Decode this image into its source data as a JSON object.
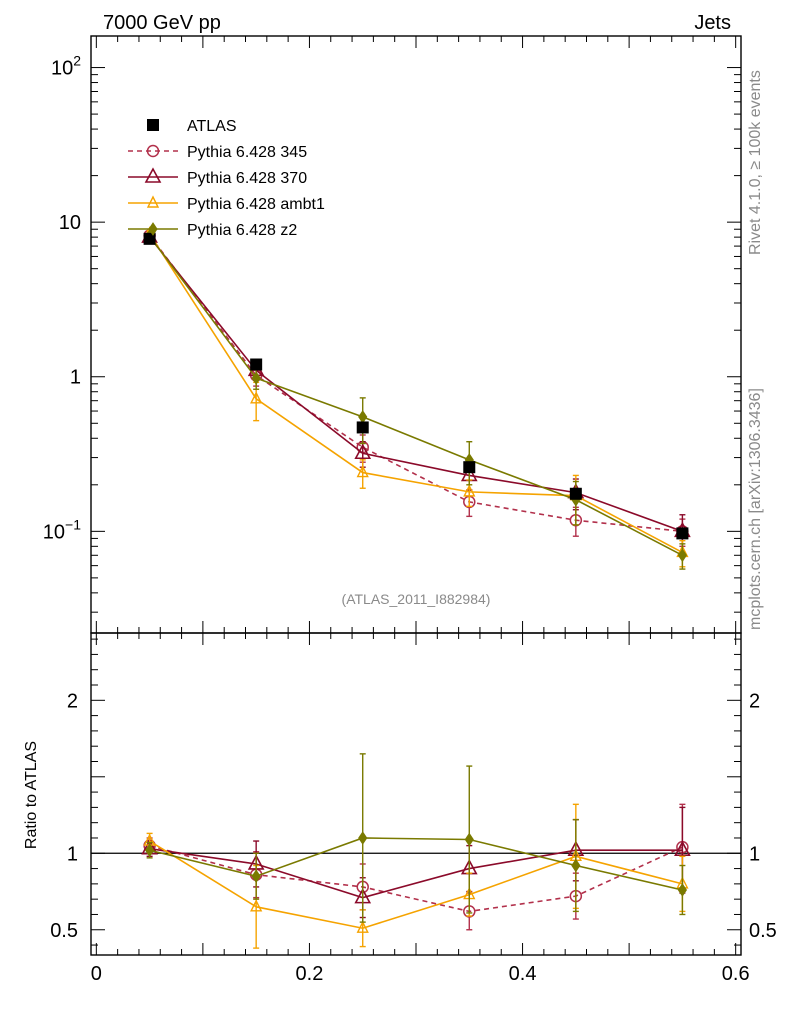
{
  "header": {
    "left": "7000 GeV pp",
    "right": "Jets"
  },
  "side_labels": {
    "top": "Rivet 4.1.0, ≥ 100k events",
    "bottom": "mcplots.cern.ch [arXiv:1306.3436]"
  },
  "analysis_id": "(ATLAS_2011_I882984)",
  "chart_data": [
    {
      "type": "line",
      "panel": "main",
      "yscale": "log",
      "ylim": [
        0.022,
        160
      ],
      "xlim": [
        -0.005,
        0.605
      ],
      "ytick_labels": [
        {
          "value": 0.1,
          "base": "10",
          "exp": "−1"
        },
        {
          "value": 1,
          "base": "1",
          "exp": ""
        },
        {
          "value": 10,
          "base": "10",
          "exp": ""
        },
        {
          "value": 100,
          "base": "10",
          "exp": "2"
        }
      ],
      "x": [
        0.05,
        0.15,
        0.25,
        0.35,
        0.45,
        0.55
      ],
      "legend_position": "top-left",
      "series": [
        {
          "name": "ATLAS",
          "color": "#000000",
          "marker": "filled-square",
          "line": "none",
          "values": [
            7.8,
            1.2,
            0.47,
            0.26,
            0.175,
            0.097
          ],
          "err": [
            0,
            0,
            0,
            0,
            0,
            0
          ]
        },
        {
          "name": "Pythia 6.428 345",
          "color": "#b2304b",
          "marker": "open-circle",
          "line": "dashed",
          "values": [
            8.2,
            1.02,
            0.35,
            0.155,
            0.118,
            0.1
          ],
          "err": [
            0.4,
            0.15,
            0.07,
            0.03,
            0.025,
            0.02
          ]
        },
        {
          "name": "Pythia 6.428 370",
          "color": "#8b0a2a",
          "marker": "open-triangle",
          "line": "solid",
          "values": [
            8.0,
            1.1,
            0.32,
            0.23,
            0.178,
            0.1
          ],
          "err": [
            0.4,
            0.15,
            0.06,
            0.045,
            0.04,
            0.028
          ]
        },
        {
          "name": "Pythia 6.428 ambt1",
          "color": "#f5a300",
          "marker": "open-triangle-small",
          "line": "solid",
          "values": [
            8.4,
            0.72,
            0.24,
            0.18,
            0.17,
            0.073
          ],
          "err": [
            0.4,
            0.2,
            0.05,
            0.035,
            0.06,
            0.014
          ]
        },
        {
          "name": "Pythia 6.428 z2",
          "color": "#7a7a00",
          "marker": "small-diamond",
          "line": "solid",
          "values": [
            8.1,
            0.98,
            0.55,
            0.29,
            0.16,
            0.07
          ],
          "err": [
            0.4,
            0.15,
            0.18,
            0.09,
            0.05,
            0.013
          ]
        }
      ]
    },
    {
      "type": "line",
      "panel": "ratio",
      "ylabel": "Ratio to ATLAS",
      "ylim": [
        0.335,
        2.44
      ],
      "xlim": [
        -0.005,
        0.605
      ],
      "yticks": [
        0.5,
        1,
        2
      ],
      "ytick_labels": [
        "0.5",
        "1",
        "2"
      ],
      "xticks": [
        0,
        0.2,
        0.4,
        0.6
      ],
      "xtick_labels": [
        "0",
        "0.2",
        "0.4",
        "0.6"
      ],
      "reference_line": 1,
      "x": [
        0.05,
        0.15,
        0.25,
        0.35,
        0.45,
        0.55
      ],
      "series": [
        {
          "name": "Pythia 6.428 345",
          "color": "#b2304b",
          "marker": "open-circle",
          "line": "dashed",
          "values": [
            1.05,
            0.86,
            0.78,
            0.62,
            0.72,
            1.04
          ],
          "err": [
            0.05,
            0.15,
            0.15,
            0.12,
            0.15,
            0.28
          ]
        },
        {
          "name": "Pythia 6.428 370",
          "color": "#8b0a2a",
          "marker": "open-triangle",
          "line": "solid",
          "values": [
            1.03,
            0.93,
            0.71,
            0.9,
            1.02,
            1.02
          ],
          "err": [
            0.05,
            0.15,
            0.13,
            0.15,
            0.2,
            0.28
          ]
        },
        {
          "name": "Pythia 6.428 ambt1",
          "color": "#f5a300",
          "marker": "open-triangle-small",
          "line": "solid",
          "values": [
            1.08,
            0.65,
            0.51,
            0.73,
            0.98,
            0.8
          ],
          "err": [
            0.05,
            0.27,
            0.12,
            0.14,
            0.34,
            0.18
          ]
        },
        {
          "name": "Pythia 6.428 z2",
          "color": "#7a7a00",
          "marker": "small-diamond",
          "line": "solid",
          "values": [
            1.02,
            0.85,
            1.1,
            1.09,
            0.92,
            0.76
          ],
          "err": [
            0.05,
            0.15,
            0.55,
            0.48,
            0.3,
            0.16
          ]
        }
      ]
    }
  ]
}
